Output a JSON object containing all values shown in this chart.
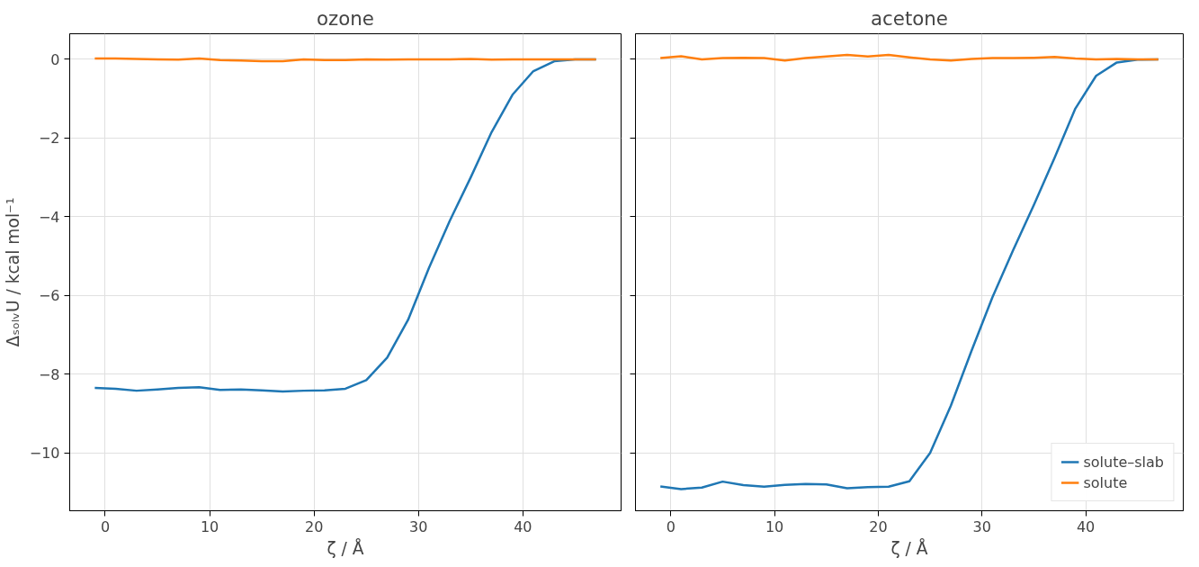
{
  "chart_data": [
    {
      "type": "line",
      "title": "ozone",
      "xlabel": "ζ / Å",
      "ylabel": "ΔₛₒₗᵥU / kcal mol⁻¹",
      "x": [
        -1,
        1,
        3,
        5,
        7,
        9,
        11,
        13,
        15,
        17,
        19,
        21,
        23,
        25,
        27,
        29,
        31,
        33,
        35,
        37,
        39,
        41,
        43,
        45,
        47
      ],
      "xlim": [
        -3.4,
        49.4
      ],
      "xticks": [
        0,
        10,
        20,
        30,
        40
      ],
      "ylim": [
        -11.47,
        0.65
      ],
      "yticks": [
        {
          "value": -10,
          "label": "−10"
        },
        {
          "value": -8,
          "label": "−8"
        },
        {
          "value": -6,
          "label": "−6"
        },
        {
          "value": -4,
          "label": "−4"
        },
        {
          "value": -2,
          "label": "−2"
        },
        0
      ],
      "grid": true,
      "legend": false,
      "series": [
        {
          "color": "#1f77b4",
          "values": [
            -8.35,
            -8.37,
            -8.42,
            -8.39,
            -8.35,
            -8.33,
            -8.4,
            -8.39,
            -8.41,
            -8.44,
            -8.42,
            -8.41,
            -8.37,
            -8.15,
            -7.58,
            -6.62,
            -5.3,
            -4.1,
            -3.0,
            -1.85,
            -0.9,
            -0.3,
            -0.05,
            0,
            0
          ]
        },
        {
          "color": "#ff7f0e",
          "values": [
            0.02,
            0.02,
            0.01,
            0,
            -0.01,
            0.02,
            -0.02,
            -0.03,
            -0.05,
            -0.05,
            0,
            -0.02,
            -0.02,
            0,
            -0.01,
            0,
            0,
            0,
            0.01,
            -0.01,
            0,
            0,
            0,
            0,
            0
          ]
        }
      ]
    },
    {
      "type": "line",
      "title": "acetone",
      "xlabel": "ζ / Å",
      "x": [
        -1,
        1,
        3,
        5,
        7,
        9,
        11,
        13,
        15,
        17,
        19,
        21,
        23,
        25,
        27,
        29,
        31,
        33,
        35,
        37,
        39,
        41,
        43,
        45,
        47
      ],
      "xlim": [
        -3.4,
        49.4
      ],
      "xticks": [
        0,
        10,
        20,
        30,
        40
      ],
      "ylim": [
        -11.47,
        0.65
      ],
      "yticks": [
        {
          "value": -10,
          "label": null
        },
        {
          "value": -8,
          "label": null
        },
        {
          "value": -6,
          "label": null
        },
        {
          "value": -4,
          "label": null
        },
        {
          "value": -2,
          "label": null
        },
        {
          "value": 0,
          "label": null
        }
      ],
      "grid": true,
      "legend": "bottom right",
      "tick_labels": "x",
      "series": [
        {
          "name": "solute–slab",
          "color": "#1f77b4",
          "values": [
            -10.85,
            -10.92,
            -10.88,
            -10.73,
            -10.82,
            -10.86,
            -10.81,
            -10.79,
            -10.8,
            -10.9,
            -10.87,
            -10.86,
            -10.72,
            -10.0,
            -8.8,
            -7.4,
            -6.05,
            -4.85,
            -3.7,
            -2.5,
            -1.25,
            -0.42,
            -0.08,
            -0.01,
            0
          ]
        },
        {
          "name": "solute",
          "color": "#ff7f0e",
          "values": [
            0.03,
            0.08,
            0,
            0.03,
            0.04,
            0.03,
            -0.03,
            0.03,
            0.07,
            0.11,
            0.07,
            0.11,
            0.05,
            0,
            -0.03,
            0.01,
            0.03,
            0.03,
            0.04,
            0.06,
            0.02,
            0,
            0.01,
            0,
            0
          ]
        }
      ]
    }
  ]
}
